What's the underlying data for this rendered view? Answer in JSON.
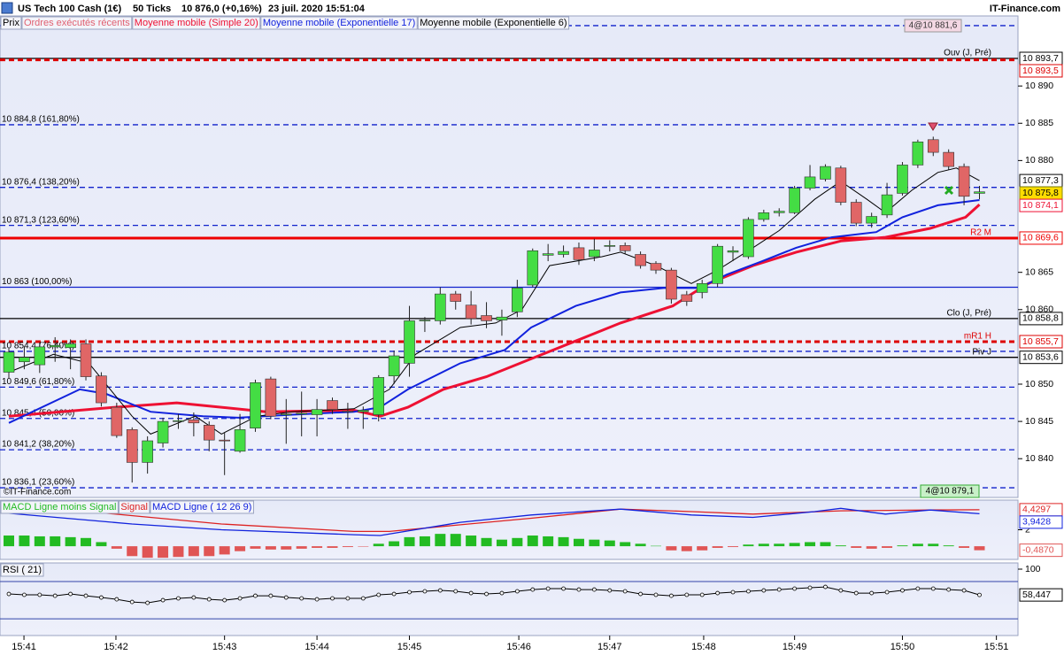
{
  "header": {
    "instrument": "US Tech 100 Cash (1€)",
    "interval": "50 Ticks",
    "price": "10 876,0 (+0,16%)",
    "datetime": "23 juil. 2020 15:51:04",
    "site": "IT-Finance.com",
    "legend_price": "Prix",
    "legend_orders": "Ordres exécutés récents",
    "watermark": "©IT-Finance.com",
    "order_top": "4@10 881,6",
    "order_bottom": "4@10 879,1"
  },
  "chart_data": [
    {
      "type": "candlestick",
      "xlim": [
        -0.575,
        65.5
      ],
      "xticks": [
        {
          "value": 0.98,
          "label": "15:41"
        },
        {
          "value": 6.95,
          "label": "15:42"
        },
        {
          "value": 14.0,
          "label": "15:43"
        },
        {
          "value": 20.0,
          "label": "15:44"
        },
        {
          "value": 26.0,
          "label": "15:45"
        },
        {
          "value": 33.1,
          "label": "15:46"
        },
        {
          "value": 39.0,
          "label": "15:47"
        },
        {
          "value": 45.1,
          "label": "15:48"
        },
        {
          "value": 51.0,
          "label": "15:49"
        },
        {
          "value": 58.0,
          "label": "15:50"
        },
        {
          "value": 64.1,
          "label": "15:51"
        }
      ],
      "ylim": [
        10834.8,
        10899.4
      ],
      "yticks": [
        {
          "value": 10890,
          "label": "10 890"
        },
        {
          "value": 10885,
          "label": "10 885"
        },
        {
          "value": 10880,
          "label": "10 880"
        },
        {
          "value": 10865,
          "label": "10 865"
        },
        {
          "value": 10860,
          "label": "10 860"
        },
        {
          "value": 10850,
          "label": "10 850"
        },
        {
          "value": 10845,
          "label": "10 845"
        },
        {
          "value": 10840,
          "label": "10 840"
        }
      ],
      "up_color": "#44dd44",
      "down_color": "#e06666",
      "open": [
        10851.6,
        10853.0,
        10852.6,
        10855.0,
        10854.9,
        10855.4,
        10851.1,
        10846.9,
        10843.9,
        10839.5,
        10842.1,
        10845.0,
        10845.2,
        10844.5,
        10842.5,
        10841.0,
        10844.1,
        10850.7,
        10845.9,
        10846.0,
        10845.9,
        10847.8,
        10846.4,
        10846.3,
        10845.9,
        10851.1,
        10852.8,
        10858.5,
        10858.5,
        10862.1,
        10860.6,
        10859.2,
        10858.6,
        10859.7,
        10863.3,
        10867.3,
        10867.4,
        10868.3,
        10867.1,
        10868.5,
        10868.6,
        10867.4,
        10866.2,
        10865.3,
        10862.0,
        10862.3,
        10863.5,
        10867.7,
        10867.1,
        10872.1,
        10873.0,
        10873.0,
        10876.3,
        10877.5,
        10879.0,
        10874.4,
        10871.6,
        10872.7,
        10875.6,
        10879.4,
        10882.8,
        10881.1,
        10879.2,
        10875.6
      ],
      "high": [
        10854.8,
        10855.0,
        10855.6,
        10856.3,
        10856.0,
        10856.0,
        10851.6,
        10847.5,
        10844.2,
        10843.0,
        10845.5,
        10846.0,
        10846.2,
        10845.0,
        10843.5,
        10846.0,
        10850.6,
        10851.0,
        10848.0,
        10849.0,
        10848.0,
        10848.2,
        10847.5,
        10847.0,
        10851.2,
        10854.5,
        10860.5,
        10859.0,
        10863.0,
        10862.5,
        10862.5,
        10861.0,
        10860.0,
        10864.0,
        10868.2,
        10868.8,
        10868.6,
        10869.0,
        10869.5,
        10869.3,
        10869.0,
        10867.8,
        10866.5,
        10865.6,
        10862.5,
        10864.0,
        10868.8,
        10868.5,
        10872.4,
        10873.4,
        10873.6,
        10876.6,
        10879.4,
        10879.5,
        10879.3,
        10874.8,
        10873.0,
        10877.0,
        10879.8,
        10882.8,
        10883.2,
        10881.5,
        10879.6,
        10876.6
      ],
      "low": [
        10850.8,
        10852.0,
        10851.5,
        10853.0,
        10852.0,
        10850.5,
        10847.0,
        10842.8,
        10836.8,
        10838.0,
        10841.5,
        10844.0,
        10843.0,
        10841.0,
        10837.8,
        10840.8,
        10843.6,
        10845.3,
        10842.0,
        10843.0,
        10843.0,
        10846.0,
        10844.0,
        10844.0,
        10845.0,
        10850.0,
        10851.0,
        10857.0,
        10858.0,
        10860.0,
        10858.0,
        10857.5,
        10856.5,
        10859.0,
        10863.0,
        10866.5,
        10867.0,
        10866.0,
        10866.5,
        10867.8,
        10867.5,
        10865.5,
        10864.8,
        10860.8,
        10860.5,
        10861.5,
        10863.0,
        10866.5,
        10866.8,
        10871.8,
        10872.5,
        10872.8,
        10876.0,
        10877.2,
        10874.0,
        10871.2,
        10871.0,
        10872.3,
        10875.3,
        10879.0,
        10880.6,
        10878.8,
        10874.0,
        10874.8
      ],
      "close": [
        10854.3,
        10853.6,
        10855.0,
        10855.2,
        10855.4,
        10851.0,
        10847.5,
        10843.1,
        10839.5,
        10842.4,
        10845.0,
        10845.1,
        10844.8,
        10842.5,
        10842.4,
        10843.9,
        10850.2,
        10845.7,
        10846.0,
        10846.1,
        10846.6,
        10846.6,
        10846.3,
        10846.5,
        10850.9,
        10853.8,
        10858.5,
        10858.6,
        10862.1,
        10861.1,
        10858.8,
        10858.5,
        10859.0,
        10862.9,
        10867.9,
        10867.5,
        10867.8,
        10866.7,
        10868.0,
        10868.6,
        10867.9,
        10865.9,
        10865.3,
        10861.4,
        10861.1,
        10863.5,
        10868.5,
        10867.9,
        10872.1,
        10873.0,
        10873.2,
        10876.3,
        10877.8,
        10879.2,
        10874.4,
        10871.6,
        10872.5,
        10875.4,
        10879.4,
        10882.5,
        10881.1,
        10879.2,
        10875.2,
        10875.8
      ],
      "last_label": "10 875,8",
      "last_color": "#ffdd00",
      "series": [
        {
          "name": "Moyenne mobile (Simple 20)",
          "color": "#ee1133",
          "width": 3,
          "x": [
            0,
            6.9,
            10.9,
            16.7,
            22.4,
            24.1,
            25.9,
            28.2,
            31.0,
            33.9,
            36.8,
            39.7,
            43.1,
            45.4,
            48.3,
            51.1,
            54.0,
            56.9,
            59.8,
            62.1,
            63.0
          ],
          "values": [
            10845.7,
            10846.9,
            10847.5,
            10846.3,
            10846.5,
            10845.7,
            10846.9,
            10849.3,
            10851.0,
            10853.4,
            10855.8,
            10858.2,
            10860.5,
            10863.5,
            10865.9,
            10867.7,
            10869.2,
            10869.7,
            10870.9,
            10872.4,
            10874.1
          ],
          "last_label": "10 874,1"
        },
        {
          "name": "Moyenne mobile (Exponentielle 17)",
          "color": "#1122dd",
          "width": 2,
          "x": [
            0,
            4.6,
            6.3,
            9.2,
            12.6,
            14.9,
            18.4,
            22.4,
            24.1,
            25.9,
            29.3,
            32.2,
            33.9,
            36.8,
            39.7,
            42.5,
            44.8,
            46.6,
            48.9,
            51.1,
            53.4,
            56.3,
            58.0,
            60.3,
            63.0
          ],
          "values": [
            10844.8,
            10849.3,
            10848.7,
            10846.3,
            10845.7,
            10845.5,
            10845.9,
            10846.3,
            10846.9,
            10849.3,
            10852.8,
            10854.6,
            10857.6,
            10860.5,
            10862.3,
            10862.9,
            10862.9,
            10864.7,
            10866.5,
            10868.3,
            10869.7,
            10870.4,
            10872.4,
            10874.0,
            10874.7
          ]
        },
        {
          "name": "Moyenne mobile (Exponentielle 6)",
          "color": "#000000",
          "width": 1,
          "x": [
            0,
            2.9,
            5.2,
            8.0,
            9.2,
            12.1,
            13.8,
            16.1,
            18.4,
            22.4,
            24.7,
            26.4,
            29.3,
            31.6,
            33.3,
            35.1,
            38.5,
            39.7,
            42.0,
            44.3,
            46.0,
            48.3,
            50.0,
            52.3,
            54.0,
            55.7,
            56.9,
            58.6,
            60.3,
            61.5,
            63.0
          ],
          "values": [
            10851.6,
            10854.0,
            10852.8,
            10845.7,
            10843.3,
            10845.7,
            10843.3,
            10845.7,
            10846.3,
            10846.7,
            10849.3,
            10854.0,
            10857.6,
            10858.2,
            10860.0,
            10865.9,
            10867.1,
            10867.7,
            10865.9,
            10863.5,
            10865.3,
            10868.3,
            10870.6,
            10874.8,
            10877.2,
            10874.8,
            10873.0,
            10876.0,
            10878.4,
            10879.0,
            10877.3
          ],
          "last_label": "10 877,3"
        }
      ],
      "levels": [
        {
          "value": 10898.1,
          "color": "#1122cc",
          "style": "dashed"
        },
        {
          "value": 10893.7,
          "color": "#000000",
          "style": "solid",
          "name": "Ouv (J, Pré)",
          "axis_label": "10 893,7"
        },
        {
          "value": 10893.5,
          "color": "#dd0000",
          "style": "dashed-thick",
          "axis_label": "10 893,5"
        },
        {
          "value": 10884.8,
          "color": "#1122cc",
          "style": "dashed",
          "label": "10 884,8 (161,80%)"
        },
        {
          "value": 10876.4,
          "color": "#1122cc",
          "style": "dashed",
          "label": "10 876,4 (138,20%)"
        },
        {
          "value": 10871.3,
          "color": "#1122cc",
          "style": "dashed",
          "label": "10 871,3 (123,60%)"
        },
        {
          "value": 10869.6,
          "color": "#ee0000",
          "style": "solid-thick",
          "name": "R2 M",
          "axis_label": "10 869,6"
        },
        {
          "value": 10863,
          "color": "#1122cc",
          "style": "solid",
          "label": "10 863 (100,00%)"
        },
        {
          "value": 10858.8,
          "color": "#000000",
          "style": "solid",
          "name": "Clo (J, Pré)",
          "axis_label": "10 858,8"
        },
        {
          "value": 10855.7,
          "color": "#dd0000",
          "style": "dashed-thick",
          "name": "mR1 H",
          "axis_label": "10 855,7"
        },
        {
          "value": 10854.4,
          "color": "#1122cc",
          "style": "dashed",
          "label": "10 854,4 (76,40%)"
        },
        {
          "value": 10853.6,
          "color": "#000000",
          "style": "solid",
          "name": "Piv J",
          "axis_label": "10 853,6"
        },
        {
          "value": 10849.6,
          "color": "#1122cc",
          "style": "dashed",
          "label": "10 849,6 (61,80%)"
        },
        {
          "value": 10845.4,
          "color": "#1122cc",
          "style": "dashed",
          "label": "10 845,4 (50,00%)"
        },
        {
          "value": 10841.2,
          "color": "#1122cc",
          "style": "dashed",
          "label": "10 841,2 (38,20%)"
        },
        {
          "value": 10836.1,
          "color": "#1122cc",
          "style": "dashed",
          "label": "10 836,1 (23,60%)"
        }
      ]
    },
    {
      "type": "macd",
      "ylim": [
        -1.6,
        5.6
      ],
      "yticks": [
        2
      ],
      "series": [
        {
          "name": "MACD Ligne moins Signal",
          "color": "#22bb22",
          "negative_color": "#e05555",
          "kind": "bar",
          "values": [
            1.3,
            1.3,
            1.2,
            1.2,
            1.1,
            1.0,
            0.5,
            -0.3,
            -1.2,
            -1.4,
            -1.4,
            -1.3,
            -1.2,
            -1.2,
            -1.0,
            -0.6,
            -0.3,
            -0.4,
            -0.4,
            -0.3,
            -0.2,
            -0.2,
            -0.1,
            -0.05,
            0.3,
            0.6,
            1.1,
            1.2,
            1.5,
            1.5,
            1.3,
            1.0,
            0.8,
            1.0,
            1.3,
            1.2,
            1.1,
            0.9,
            0.8,
            0.7,
            0.5,
            0.3,
            0.05,
            -0.5,
            -0.6,
            -0.5,
            -0.2,
            -0.1,
            0.2,
            0.3,
            0.3,
            0.4,
            0.5,
            0.5,
            0.1,
            -0.2,
            -0.3,
            -0.2,
            0.1,
            0.3,
            0.3,
            0.1,
            -0.2,
            -0.487
          ],
          "last_label": "-0,4870"
        },
        {
          "name": "Signal",
          "color": "#dd2222",
          "kind": "line",
          "x": [
            0,
            5.2,
            13.8,
            22.4,
            24.7,
            29.3,
            33.9,
            39.7,
            44.3,
            48.3,
            54.0,
            59.8,
            63.0
          ],
          "values": [
            4.5,
            4.2,
            2.7,
            1.8,
            1.8,
            2.6,
            3.4,
            4.5,
            4.2,
            3.9,
            4.3,
            4.4,
            4.4297
          ],
          "last_label": "4,4297"
        },
        {
          "name": "MACD Ligne ( 12 26 9)",
          "color": "#1122dd",
          "kind": "line",
          "x": [
            0,
            8.0,
            13.8,
            22.4,
            24.1,
            29.3,
            33.9,
            39.7,
            44.3,
            48.3,
            52.3,
            54.0,
            56.9,
            59.8,
            63.0
          ],
          "values": [
            4.0,
            2.7,
            2.0,
            1.4,
            1.3,
            2.9,
            3.8,
            4.5,
            3.8,
            3.5,
            4.2,
            4.6,
            3.9,
            4.4,
            3.9428
          ],
          "last_label": "3,9428"
        }
      ]
    },
    {
      "type": "line",
      "ylim": [
        -7,
        110
      ],
      "yticks": [
        100
      ],
      "hlines": [
        80,
        20
      ],
      "series": [
        {
          "name": "RSI ( 21)",
          "color": "#000000",
          "values": [
            60,
            58.6,
            58.6,
            57.1,
            60,
            57.1,
            54.3,
            51.4,
            47.1,
            45.7,
            50,
            52.9,
            54.3,
            51.4,
            50,
            52.9,
            57.1,
            57.1,
            54.3,
            52.9,
            51.4,
            52.9,
            52.9,
            52.9,
            58.6,
            60,
            62.9,
            64.3,
            65.7,
            64.3,
            61.4,
            60,
            61.4,
            64.3,
            67.1,
            68.6,
            68.6,
            67.1,
            67.1,
            65.7,
            64.3,
            60,
            58.6,
            57.1,
            58.6,
            58.6,
            61.4,
            62.9,
            64.3,
            65.7,
            67.1,
            68.6,
            70,
            71.4,
            65.7,
            61.4,
            61.4,
            62.9,
            65.7,
            68.6,
            68.6,
            67.1,
            65.7,
            58.447
          ],
          "last_label": "58,447"
        }
      ]
    }
  ]
}
